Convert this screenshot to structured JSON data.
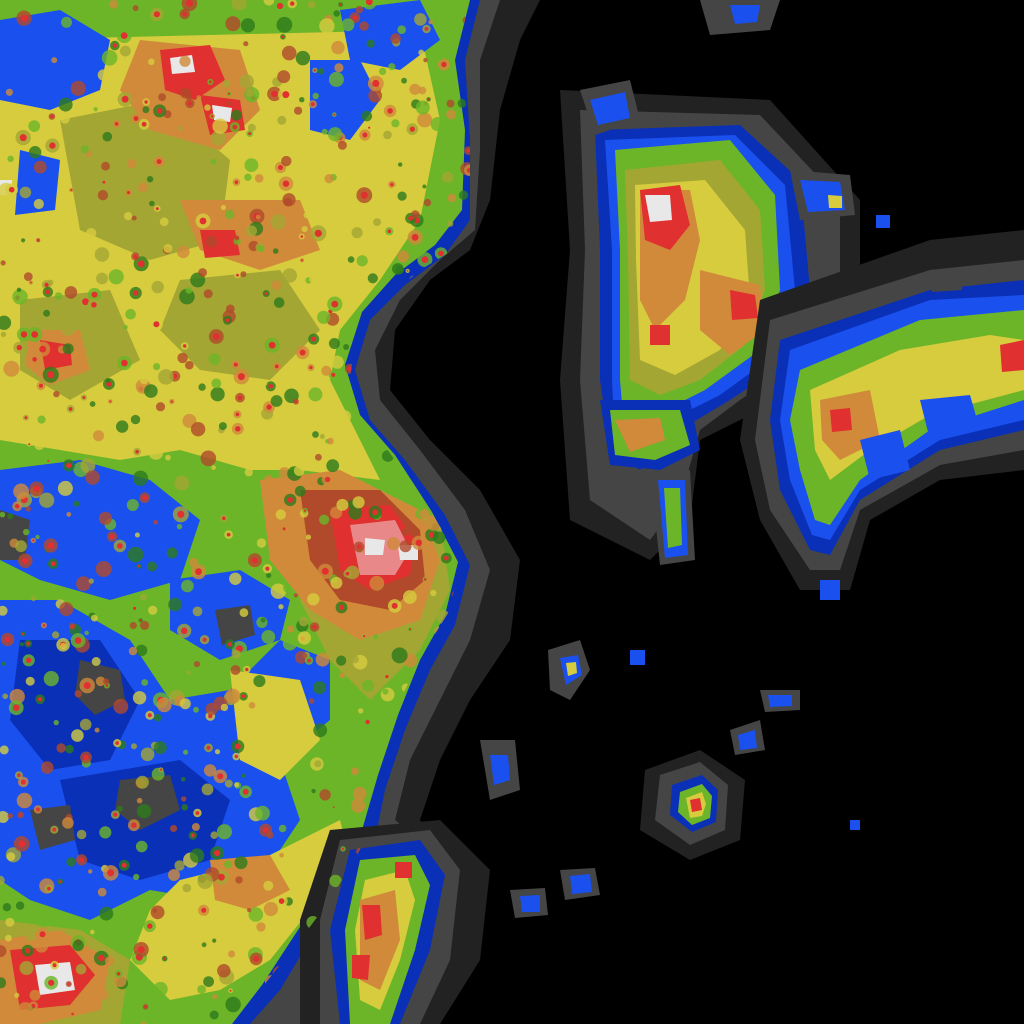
{
  "map": {
    "kind": "light-pollution-tile",
    "background_color": "#000000",
    "legend_visible": false,
    "labels_visible": false,
    "palette": [
      {
        "level": 0,
        "name": "black",
        "color": "#000000"
      },
      {
        "level": 1,
        "name": "dark-gray",
        "color": "#222222"
      },
      {
        "level": 2,
        "name": "gray",
        "color": "#454545"
      },
      {
        "level": 3,
        "name": "dark-blue",
        "color": "#0a30b8"
      },
      {
        "level": 4,
        "name": "blue",
        "color": "#1a50ee"
      },
      {
        "level": 5,
        "name": "dark-green",
        "color": "#2d7a1c"
      },
      {
        "level": 6,
        "name": "green",
        "color": "#6cb528"
      },
      {
        "level": 7,
        "name": "olive",
        "color": "#a4a634"
      },
      {
        "level": 8,
        "name": "yellow",
        "color": "#d6cc3e"
      },
      {
        "level": 9,
        "name": "orange",
        "color": "#d08a3a"
      },
      {
        "level": 10,
        "name": "brown-red",
        "color": "#b04a2a"
      },
      {
        "level": 11,
        "name": "red",
        "color": "#e03030"
      },
      {
        "level": 12,
        "name": "pink",
        "color": "#e88888"
      },
      {
        "level": 13,
        "name": "white",
        "color": "#e8e8e8"
      }
    ],
    "regions": [
      {
        "name": "mainland-coast",
        "brightness": "high"
      },
      {
        "name": "northeast-peninsula",
        "brightness": "high"
      },
      {
        "name": "northeast-island-chain",
        "brightness": "medium"
      },
      {
        "name": "southern-island",
        "brightness": "medium"
      },
      {
        "name": "central-offshore-island",
        "brightness": "low"
      },
      {
        "name": "small-islets",
        "brightness": "low"
      }
    ]
  }
}
